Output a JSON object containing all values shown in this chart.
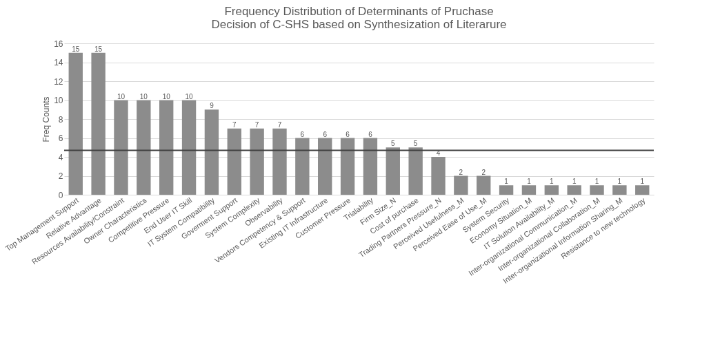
{
  "chart_data": {
    "type": "bar",
    "title": "Frequency Distribution of Determinants of Pruchase Decision of C-SHS based on Synthesization of Literarure",
    "ylabel": "Freq Counts",
    "categories": [
      "Top Management Support",
      "Relative Advantage",
      "Resources Availability/Constraint",
      "Owner Characteristics",
      "Competitive Pressure",
      "End User IT Skill",
      "IT System Compatibility",
      "Goverment Support",
      "System Complexity",
      "Observability",
      "Vendors Competency & Support",
      "Existing IT Infrastructure",
      "Customer Pressure",
      "Trialability",
      "Firm Size_N",
      "Cost of purchase",
      "Trading Partners Pressure_N",
      "Perceived Usefulness_M",
      "Perceived Ease of Use_M",
      "System Security",
      "Economy Situation_M",
      "IT Solution Availability_M",
      "Inter-organizational Communication_M",
      "Inter-organizational Collaboration_M",
      "Inter-organizational Information Sharing_M",
      "Resistance to new technology"
    ],
    "series": [
      {
        "color": "#8c8c8c",
        "values": [
          15,
          15,
          10,
          10,
          10,
          10,
          9,
          7,
          7,
          7,
          6,
          6,
          6,
          6,
          5,
          5,
          4,
          2,
          2,
          1,
          1,
          1,
          1,
          1,
          1,
          1
        ]
      }
    ],
    "ylim": [
      0,
      16
    ],
    "yticks": [
      0,
      2,
      4,
      6,
      8,
      10,
      12,
      14,
      16
    ],
    "grid": "y",
    "data_labels": true,
    "ref_lines": [
      {
        "axis": "y",
        "value": 4.7,
        "color": "#404040"
      }
    ]
  }
}
